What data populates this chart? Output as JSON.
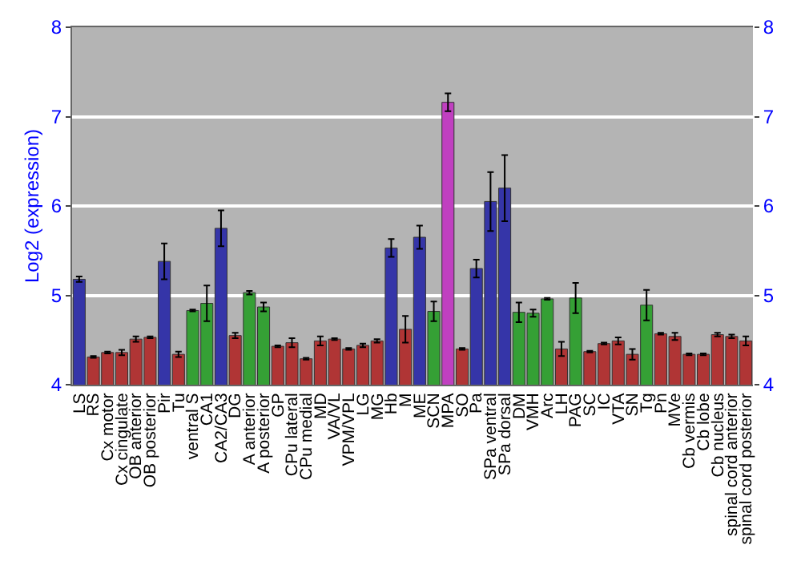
{
  "chart_data": {
    "type": "bar",
    "ylabel": "Log2 (expression)",
    "categories": [
      "LS",
      "RS",
      "Cx motor",
      "Cx cingulate",
      "OB anterior",
      "OB posterior",
      "Pir",
      "Tu",
      "ventral S",
      "CA1",
      "CA2/CA3",
      "DG",
      "A anterior",
      "A posterior",
      "GP",
      "CPu lateral",
      "CPu medial",
      "MD",
      "VA/VL",
      "VPM/VPL",
      "LG",
      "MG",
      "Hb",
      "M",
      "ME",
      "SCN",
      "MPA",
      "SO",
      "Pa",
      "SPa ventral",
      "SPa dorsal",
      "DM",
      "VMH",
      "Arc",
      "LH",
      "PAG",
      "SC",
      "IC",
      "VTA",
      "SN",
      "Tg",
      "Pn",
      "MVe",
      "Cb vermis",
      "Cb lobe",
      "Cb nucleus",
      "spinal cord anterior",
      "spinal cord posterior"
    ],
    "values": [
      5.18,
      4.31,
      4.36,
      4.36,
      4.51,
      4.53,
      5.38,
      4.34,
      4.83,
      4.91,
      5.75,
      4.55,
      5.03,
      4.87,
      4.43,
      4.47,
      4.29,
      4.49,
      4.51,
      4.4,
      4.44,
      4.49,
      5.53,
      4.62,
      5.65,
      4.82,
      7.16,
      4.4,
      5.3,
      6.05,
      6.2,
      4.81,
      4.8,
      4.96,
      4.4,
      4.97,
      4.37,
      4.46,
      4.49,
      4.34,
      4.89,
      4.57,
      4.54,
      4.34,
      4.34,
      4.56,
      4.54,
      4.49
    ],
    "errors": [
      0.03,
      0.01,
      0.01,
      0.03,
      0.03,
      0.01,
      0.2,
      0.03,
      0.01,
      0.2,
      0.2,
      0.03,
      0.02,
      0.05,
      0.01,
      0.05,
      0.01,
      0.05,
      0.01,
      0.01,
      0.02,
      0.02,
      0.1,
      0.15,
      0.13,
      0.11,
      0.1,
      0.01,
      0.1,
      0.33,
      0.37,
      0.11,
      0.04,
      0.01,
      0.08,
      0.17,
      0.01,
      0.01,
      0.04,
      0.06,
      0.17,
      0.01,
      0.04,
      0.01,
      0.01,
      0.02,
      0.02,
      0.05
    ],
    "colors": [
      "#3535a8",
      "#b03535",
      "#b03535",
      "#b03535",
      "#b03535",
      "#b03535",
      "#3535a8",
      "#b03535",
      "#35a035",
      "#35a035",
      "#3535a8",
      "#b03535",
      "#35a035",
      "#35a035",
      "#b03535",
      "#b03535",
      "#b03535",
      "#b03535",
      "#b03535",
      "#b03535",
      "#b03535",
      "#b03535",
      "#3535a8",
      "#b03535",
      "#3535a8",
      "#35a035",
      "#c040c0",
      "#b03535",
      "#3535a8",
      "#3535a8",
      "#3535a8",
      "#35a035",
      "#35a035",
      "#35a035",
      "#b03535",
      "#35a035",
      "#b03535",
      "#b03535",
      "#b03535",
      "#b03535",
      "#35a035",
      "#b03535",
      "#b03535",
      "#b03535",
      "#b03535",
      "#b03535",
      "#b03535",
      "#b03535"
    ],
    "ylim": [
      4,
      8
    ],
    "yticks": [
      4,
      5,
      6,
      7,
      8
    ],
    "y2lim": [
      4,
      8
    ],
    "y2ticks": [
      4,
      5,
      6,
      7,
      8
    ],
    "grid": "y"
  }
}
